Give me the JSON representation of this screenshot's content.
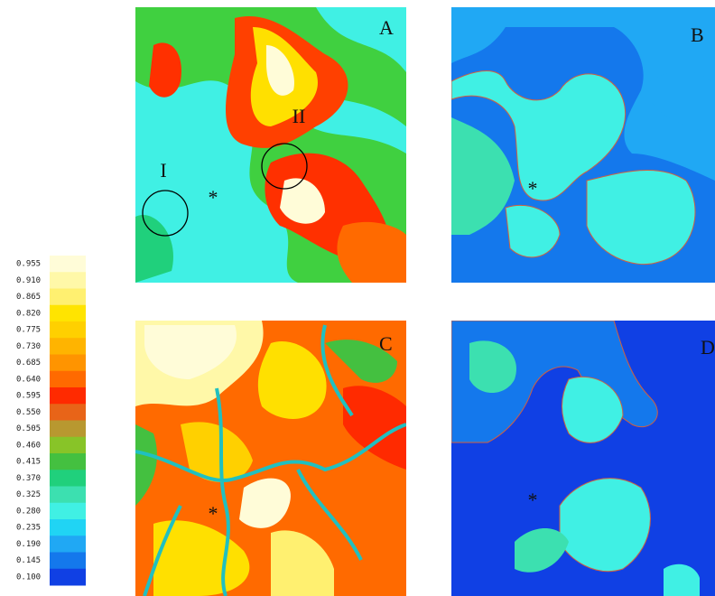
{
  "colorbar": {
    "labels": [
      "0.955",
      "0.910",
      "0.865",
      "0.820",
      "0.775",
      "0.730",
      "0.685",
      "0.640",
      "0.595",
      "0.550",
      "0.505",
      "0.460",
      "0.415",
      "0.370",
      "0.325",
      "0.280",
      "0.235",
      "0.190",
      "0.145",
      "0.100"
    ],
    "colors": [
      "#fffcd8",
      "#fff8a8",
      "#fff070",
      "#ffe400",
      "#ffd000",
      "#ffb400",
      "#ff9400",
      "#ff6a00",
      "#ff2a00",
      "#e86418",
      "#b89830",
      "#88c428",
      "#44c040",
      "#20d07c",
      "#3ce0b0",
      "#40f0e4",
      "#20d4f4",
      "#20a8f4",
      "#1478ec",
      "#1040e4"
    ]
  },
  "panels": [
    {
      "label": "A",
      "annotations": [
        "I",
        "II",
        "*"
      ]
    },
    {
      "label": "B",
      "annotations": [
        "*"
      ]
    },
    {
      "label": "C",
      "annotations": [
        "*"
      ]
    },
    {
      "label": "D",
      "annotations": [
        "*"
      ]
    }
  ]
}
